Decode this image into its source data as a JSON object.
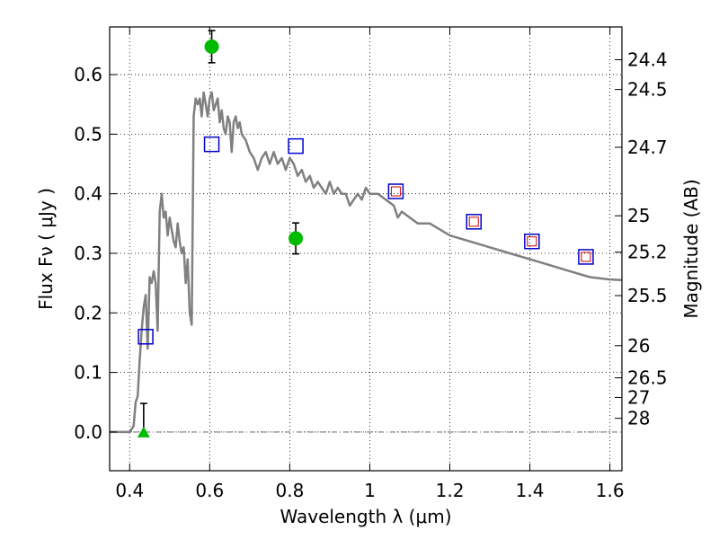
{
  "chart_data": {
    "type": "line",
    "xlabel": "Wavelength  λ (μm)",
    "ylabel": "Flux  Fν  ( μJy )",
    "ylabel_right": "Magnitude (AB)",
    "xlim": [
      0.35,
      1.63
    ],
    "ylim": [
      -0.065,
      0.68
    ],
    "grid": true,
    "x_ticks": [
      0.4,
      0.6,
      0.8,
      1.0,
      1.2,
      1.4,
      1.6
    ],
    "x_tick_labels": [
      "0.4",
      "0.6",
      "0.8",
      "1",
      "1.2",
      "1.4",
      "1.6"
    ],
    "y_ticks": [
      0.0,
      0.1,
      0.2,
      0.3,
      0.4,
      0.5,
      0.6
    ],
    "y_tick_labels": [
      "0.0",
      "0.1",
      "0.2",
      "0.3",
      "0.4",
      "0.5",
      "0.6"
    ],
    "mag_ticks": [
      {
        "label": "24.4",
        "flux": 0.625
      },
      {
        "label": "24.5",
        "flux": 0.575
      },
      {
        "label": "24.7",
        "flux": 0.478
      },
      {
        "label": "25",
        "flux": 0.363
      },
      {
        "label": "25.2",
        "flux": 0.302
      },
      {
        "label": "25.5",
        "flux": 0.229
      },
      {
        "label": "26",
        "flux": 0.145
      },
      {
        "label": "26.5",
        "flux": 0.091
      },
      {
        "label": "27",
        "flux": 0.058
      },
      {
        "label": "28",
        "flux": 0.023
      }
    ],
    "model_sed": {
      "name": "",
      "color": "#808080",
      "x": [
        0.35,
        0.38,
        0.4,
        0.41,
        0.415,
        0.42,
        0.425,
        0.43,
        0.435,
        0.44,
        0.445,
        0.45,
        0.455,
        0.46,
        0.465,
        0.47,
        0.475,
        0.48,
        0.485,
        0.49,
        0.495,
        0.5,
        0.505,
        0.51,
        0.515,
        0.52,
        0.525,
        0.53,
        0.535,
        0.54,
        0.545,
        0.55,
        0.555,
        0.56,
        0.565,
        0.57,
        0.575,
        0.58,
        0.585,
        0.59,
        0.595,
        0.6,
        0.605,
        0.61,
        0.615,
        0.62,
        0.625,
        0.63,
        0.635,
        0.64,
        0.645,
        0.65,
        0.655,
        0.66,
        0.665,
        0.67,
        0.675,
        0.68,
        0.69,
        0.7,
        0.71,
        0.72,
        0.73,
        0.74,
        0.75,
        0.76,
        0.77,
        0.78,
        0.79,
        0.8,
        0.81,
        0.82,
        0.83,
        0.84,
        0.85,
        0.86,
        0.87,
        0.88,
        0.89,
        0.9,
        0.91,
        0.92,
        0.93,
        0.94,
        0.95,
        0.96,
        0.97,
        0.98,
        0.99,
        1.0,
        1.02,
        1.04,
        1.06,
        1.07,
        1.08,
        1.1,
        1.12,
        1.15,
        1.2,
        1.25,
        1.3,
        1.35,
        1.4,
        1.45,
        1.5,
        1.55,
        1.6,
        1.63
      ],
      "y": [
        0.0,
        0.0,
        0.0,
        0.01,
        0.05,
        0.06,
        0.12,
        0.17,
        0.21,
        0.23,
        0.14,
        0.26,
        0.25,
        0.27,
        0.25,
        0.17,
        0.37,
        0.4,
        0.36,
        0.37,
        0.33,
        0.36,
        0.34,
        0.32,
        0.31,
        0.35,
        0.32,
        0.3,
        0.31,
        0.25,
        0.29,
        0.2,
        0.18,
        0.53,
        0.56,
        0.55,
        0.56,
        0.53,
        0.57,
        0.55,
        0.53,
        0.56,
        0.57,
        0.54,
        0.55,
        0.56,
        0.52,
        0.54,
        0.51,
        0.5,
        0.53,
        0.52,
        0.47,
        0.52,
        0.53,
        0.51,
        0.52,
        0.5,
        0.49,
        0.47,
        0.46,
        0.44,
        0.46,
        0.47,
        0.45,
        0.47,
        0.45,
        0.46,
        0.44,
        0.46,
        0.45,
        0.43,
        0.44,
        0.42,
        0.43,
        0.41,
        0.42,
        0.41,
        0.4,
        0.42,
        0.4,
        0.41,
        0.4,
        0.4,
        0.38,
        0.39,
        0.4,
        0.39,
        0.41,
        0.4,
        0.4,
        0.39,
        0.38,
        0.36,
        0.37,
        0.36,
        0.35,
        0.35,
        0.33,
        0.32,
        0.31,
        0.3,
        0.29,
        0.28,
        0.27,
        0.26,
        0.256,
        0.255
      ]
    },
    "synthetic_flux": {
      "name": "",
      "marker": "open-square",
      "color": "#0000cc",
      "x": [
        0.44,
        0.605,
        0.815,
        1.065,
        1.26,
        1.405,
        1.54
      ],
      "y": [
        0.16,
        0.483,
        0.48,
        0.404,
        0.353,
        0.32,
        0.294
      ]
    },
    "model_points": {
      "name": "",
      "marker": "small-square",
      "color": "#cc0000",
      "x": [
        1.065,
        1.26,
        1.405,
        1.54
      ],
      "y": [
        0.404,
        0.353,
        0.32,
        0.294
      ]
    },
    "observed": {
      "name": "",
      "marker": "filled-circle",
      "color": "#00bb00",
      "x": [
        0.605,
        0.815
      ],
      "y": [
        0.647,
        0.325
      ],
      "err": [
        0.027,
        0.026
      ]
    },
    "upper_limits": {
      "name": "",
      "marker": "filled-triangle",
      "color": "#00bb00",
      "x": [
        0.435
      ],
      "y": [
        0.0
      ],
      "err_high": [
        0.048
      ]
    },
    "zero_line": {
      "y": 0.0,
      "style": "dash-dot",
      "color": "#555555"
    }
  }
}
